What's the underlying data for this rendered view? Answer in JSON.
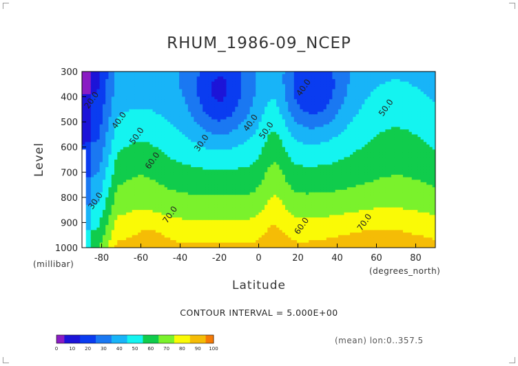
{
  "chart_data": {
    "type": "heatmap",
    "title": "RHUM_1986-09_NCEP",
    "xlabel": "Latitude",
    "ylabel": "Level",
    "x_unit": "(degrees_north)",
    "y_unit": "(millibar)",
    "xlim": [
      -90,
      90
    ],
    "ylim": [
      1000,
      300
    ],
    "x_ticks": [
      -80,
      -60,
      -40,
      -20,
      0,
      20,
      40,
      60,
      80
    ],
    "x_tick_labels": [
      "-80",
      "-60",
      "-40",
      "-20",
      "0",
      "20",
      "40",
      "60",
      "80"
    ],
    "y_ticks": [
      300,
      400,
      500,
      600,
      700,
      800,
      900,
      1000
    ],
    "y_tick_labels": [
      "300",
      "400",
      "500",
      "600",
      "700",
      "800",
      "900",
      "1000"
    ],
    "contour_interval_text": "CONTOUR INTERVAL = 5.000E+00",
    "mean_note": "(mean) lon:0..357.5",
    "contour_labels": [
      {
        "text": "20.0",
        "x": -84,
        "y": 420
      },
      {
        "text": "40.0",
        "x": -70,
        "y": 500
      },
      {
        "text": "50.0",
        "x": -61,
        "y": 562
      },
      {
        "text": "30.0",
        "x": -28,
        "y": 590
      },
      {
        "text": "40.0",
        "x": -3,
        "y": 510
      },
      {
        "text": "50.0",
        "x": 5,
        "y": 540
      },
      {
        "text": "40.0",
        "x": 24,
        "y": 370
      },
      {
        "text": "50.0",
        "x": 66,
        "y": 450
      },
      {
        "text": "60.0",
        "x": -53,
        "y": 660
      },
      {
        "text": "70.0",
        "x": -44,
        "y": 875
      },
      {
        "text": "30.0",
        "x": -82,
        "y": 820
      },
      {
        "text": "60.0",
        "x": 23,
        "y": 920
      },
      {
        "text": "70.0",
        "x": 55,
        "y": 905
      }
    ],
    "colorbar": {
      "levels": [
        0,
        10,
        20,
        30,
        40,
        50,
        60,
        70,
        80,
        90,
        100
      ],
      "tick_labels": [
        "0",
        "10",
        "20",
        "30",
        "40",
        "50",
        "60",
        "70",
        "80",
        "90",
        "100"
      ],
      "colors": [
        "#8a1cc4",
        "#1c14d8",
        "#0a3cf0",
        "#1a78f2",
        "#18b4f8",
        "#14f4f0",
        "#10cc4c",
        "#7af22c",
        "#fafa06",
        "#f5bc06",
        "#f57a06",
        "#ee3c06",
        "#e20000"
      ]
    },
    "grid": false
  }
}
